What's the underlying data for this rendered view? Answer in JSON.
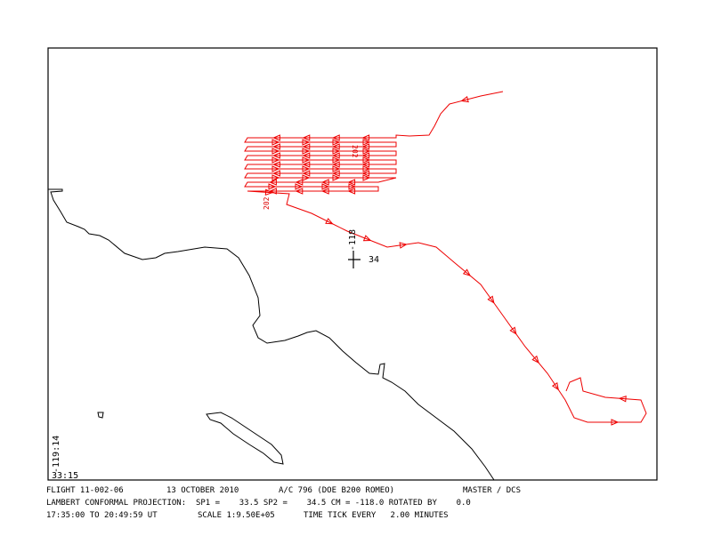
{
  "footer": {
    "line1": [
      "FLIGHT 11-002-06",
      "13 OCTOBER 2010",
      "A/C 796 (DOE B200 ROMEO)",
      "MASTER / DCS"
    ],
    "line2": "LAMBERT CONFORMAL PROJECTION:  SP1 =    33.5 SP2 =    34.5 CM = -118.0 ROTATED BY    0.0",
    "line3": [
      "17:35:00 TO 20:49:59 UT",
      "SCALE 1:9.50E+05",
      "TIME TICK EVERY   2.00 MINUTES"
    ]
  },
  "map": {
    "corner_lon": "-119:14",
    "corner_lat": "33:15",
    "center_lon": "-118",
    "center_lat": "34",
    "track_labels": [
      "202",
      "202"
    ]
  }
}
